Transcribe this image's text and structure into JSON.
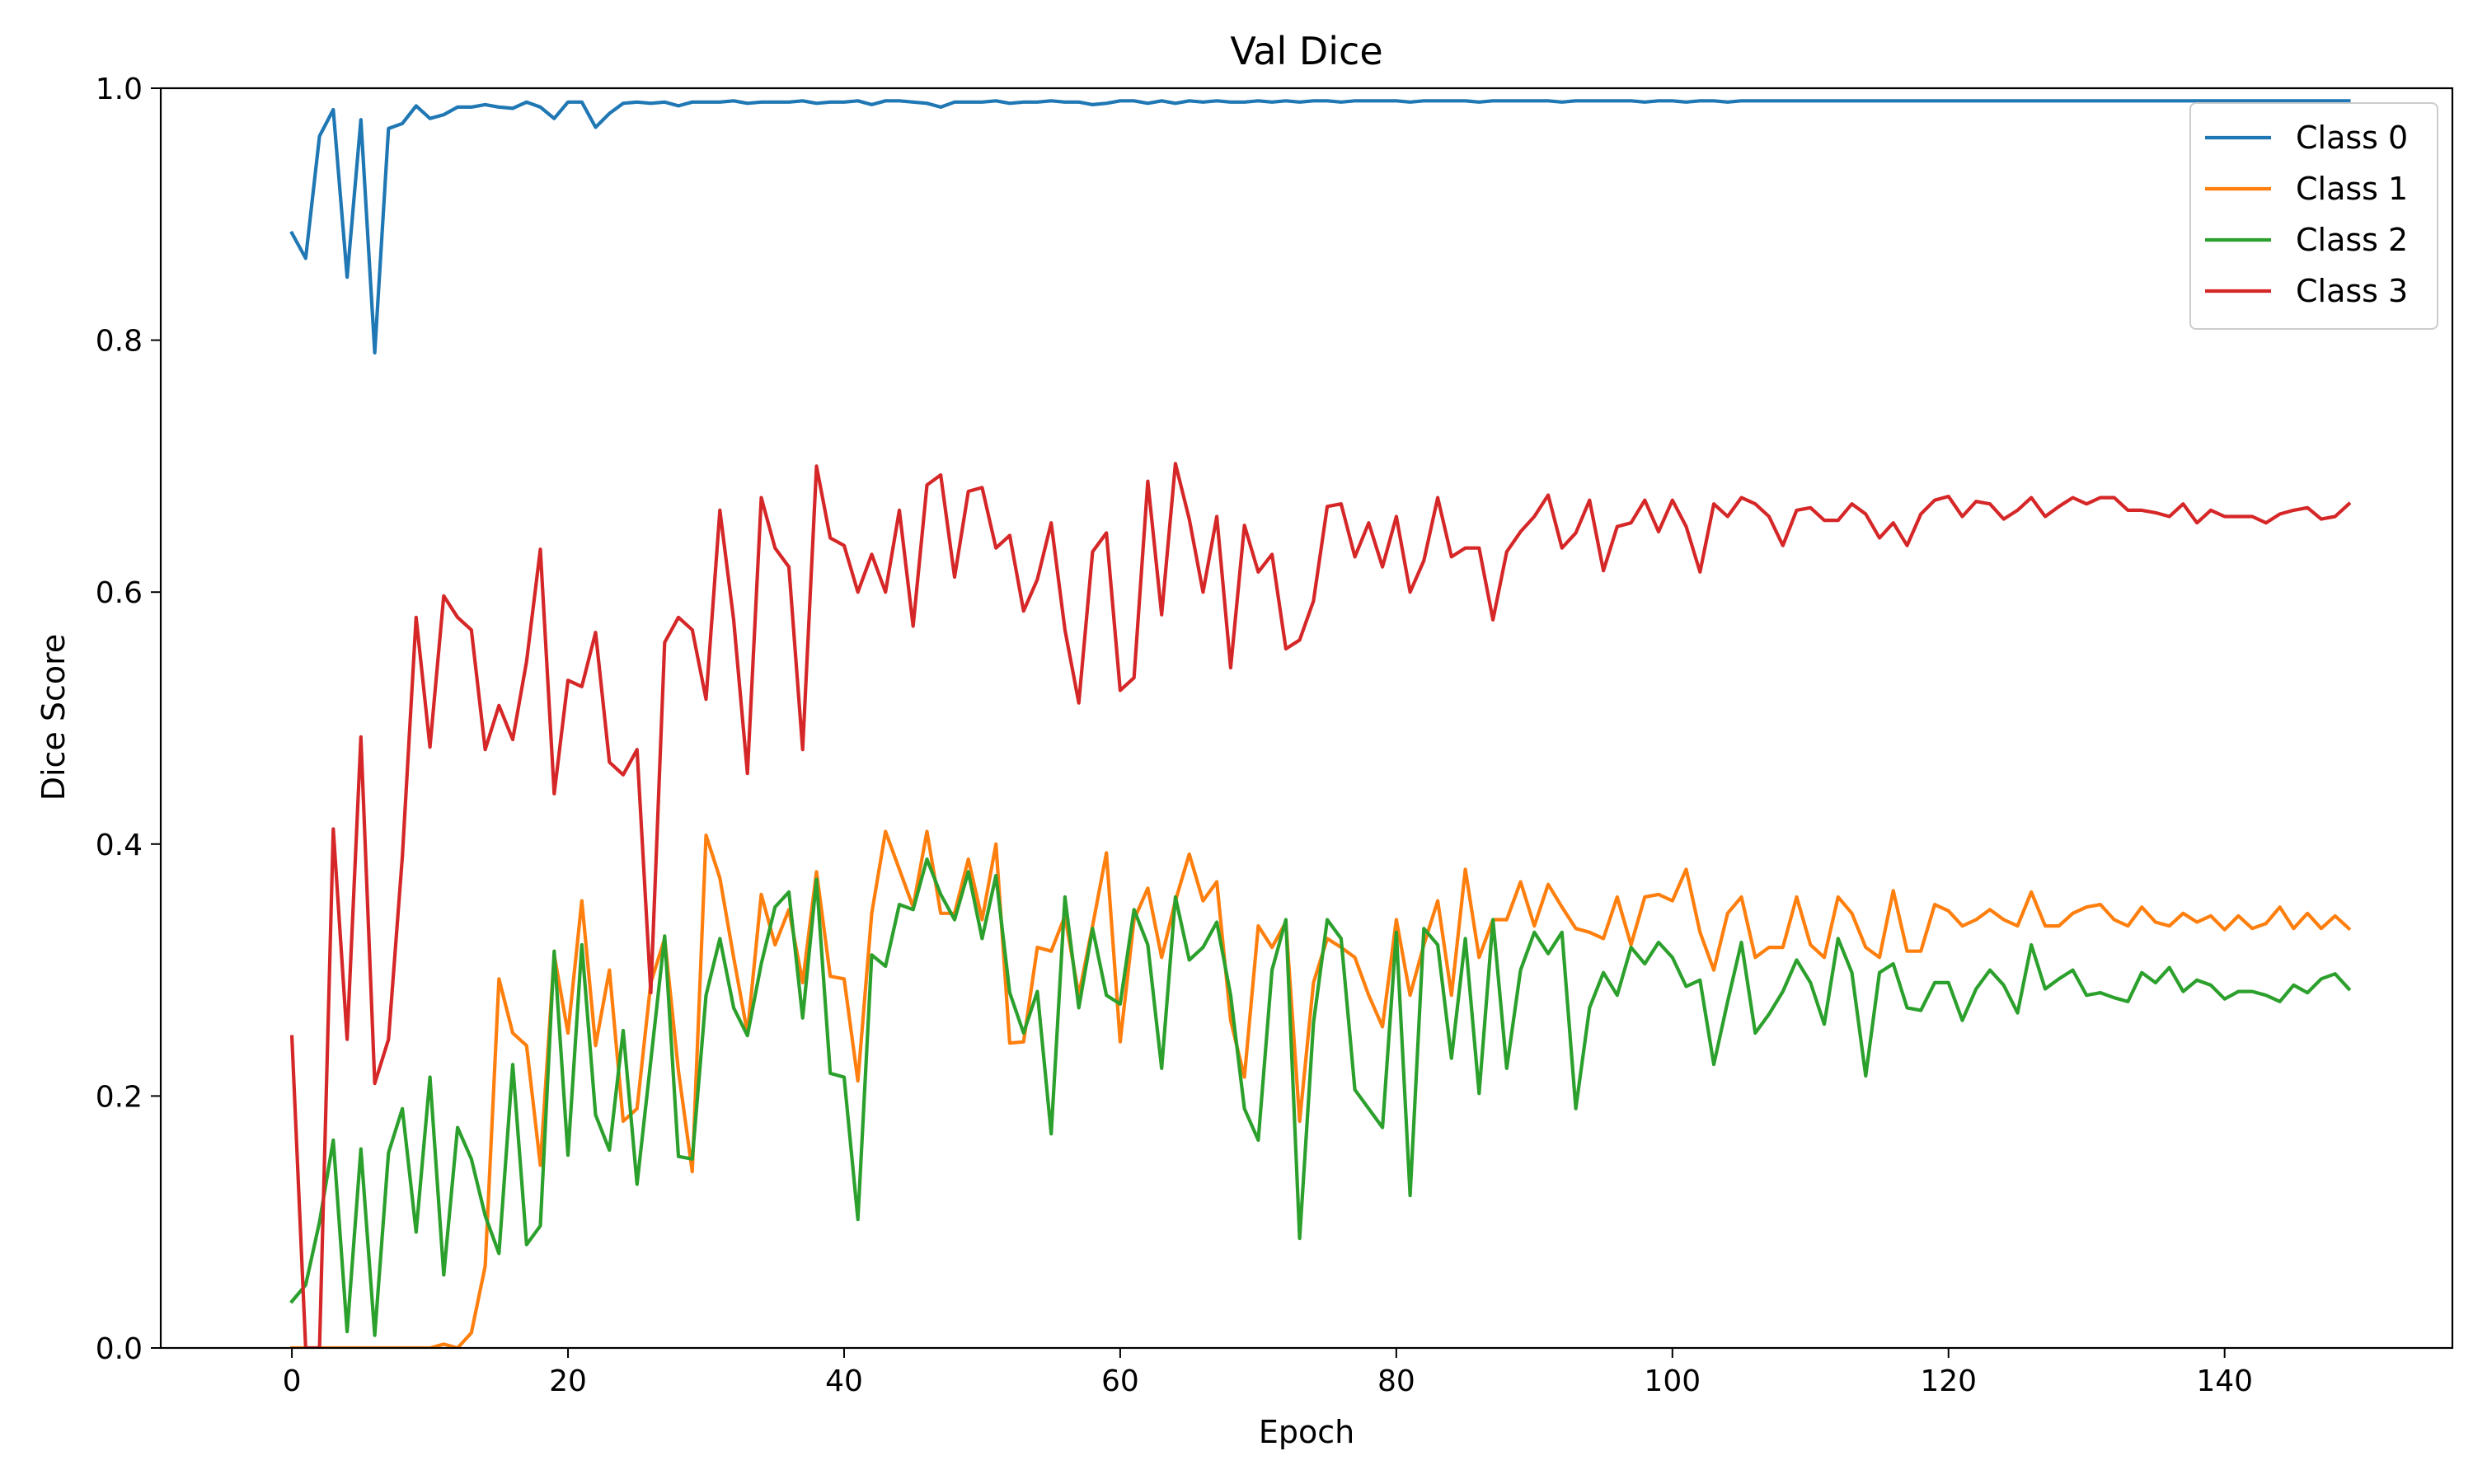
{
  "chart_data": {
    "type": "line",
    "title": "Val Dice",
    "xlabel": "Epoch",
    "ylabel": "Dice Score",
    "xlim": [
      -9.5,
      156.5
    ],
    "ylim": [
      0.0,
      1.0
    ],
    "xticks": [
      0,
      20,
      40,
      60,
      80,
      100,
      120,
      140
    ],
    "yticks": [
      0.0,
      0.2,
      0.4,
      0.6,
      0.8,
      1.0
    ],
    "xtick_labels": [
      "0",
      "20",
      "40",
      "60",
      "80",
      "100",
      "120",
      "140"
    ],
    "ytick_labels": [
      "0.0",
      "0.2",
      "0.4",
      "0.6",
      "0.8",
      "1.0"
    ],
    "grid": false,
    "legend_position": "top-right",
    "colors": [
      "#1f77b4",
      "#ff7f0e",
      "#2ca02c",
      "#d62728"
    ],
    "series": [
      {
        "name": "Class 0",
        "values": [
          0.885,
          0.865,
          0.962,
          0.983,
          0.85,
          0.975,
          0.79,
          0.968,
          0.972,
          0.986,
          0.976,
          0.979,
          0.985,
          0.985,
          0.987,
          0.985,
          0.984,
          0.989,
          0.985,
          0.976,
          0.989,
          0.989,
          0.969,
          0.98,
          0.988,
          0.989,
          0.988,
          0.989,
          0.986,
          0.989,
          0.989,
          0.989,
          0.99,
          0.988,
          0.989,
          0.989,
          0.989,
          0.99,
          0.988,
          0.989,
          0.989,
          0.99,
          0.987,
          0.99,
          0.99,
          0.989,
          0.988,
          0.985,
          0.989,
          0.989,
          0.989,
          0.99,
          0.988,
          0.989,
          0.989,
          0.99,
          0.989,
          0.989,
          0.987,
          0.988,
          0.99,
          0.99,
          0.988,
          0.99,
          0.988,
          0.99,
          0.989,
          0.99,
          0.989,
          0.989,
          0.99,
          0.989,
          0.99,
          0.989,
          0.99,
          0.99,
          0.989,
          0.99,
          0.99,
          0.99,
          0.99,
          0.989,
          0.99,
          0.99,
          0.99,
          0.99,
          0.989,
          0.99,
          0.99,
          0.99,
          0.99,
          0.99,
          0.989,
          0.99,
          0.99,
          0.99,
          0.99,
          0.99,
          0.989,
          0.99,
          0.99,
          0.989,
          0.99,
          0.99,
          0.989,
          0.99,
          0.99,
          0.99,
          0.99,
          0.99,
          0.99,
          0.99,
          0.99,
          0.99,
          0.99,
          0.99,
          0.99,
          0.99,
          0.99,
          0.99,
          0.99,
          0.99,
          0.99,
          0.99,
          0.99,
          0.99,
          0.99,
          0.99,
          0.99,
          0.99,
          0.99,
          0.99,
          0.99,
          0.99,
          0.99,
          0.99,
          0.99,
          0.99,
          0.99,
          0.99,
          0.99,
          0.99,
          0.99,
          0.99,
          0.99,
          0.99,
          0.99,
          0.99,
          0.99,
          0.99
        ]
      },
      {
        "name": "Class 1",
        "values": [
          0.0,
          0.0,
          0.0,
          0.0,
          0.0,
          0.0,
          0.0,
          0.0,
          0.0,
          0.0,
          0.0,
          0.003,
          0.0,
          0.012,
          0.065,
          0.293,
          0.25,
          0.24,
          0.145,
          0.312,
          0.25,
          0.355,
          0.24,
          0.3,
          0.18,
          0.19,
          0.29,
          0.325,
          0.22,
          0.14,
          0.407,
          0.373,
          0.31,
          0.25,
          0.36,
          0.32,
          0.348,
          0.29,
          0.378,
          0.295,
          0.293,
          0.212,
          0.345,
          0.41,
          0.38,
          0.35,
          0.41,
          0.345,
          0.345,
          0.388,
          0.34,
          0.4,
          0.242,
          0.243,
          0.318,
          0.315,
          0.343,
          0.28,
          0.335,
          0.393,
          0.243,
          0.34,
          0.365,
          0.31,
          0.355,
          0.392,
          0.355,
          0.37,
          0.26,
          0.215,
          0.335,
          0.318,
          0.338,
          0.18,
          0.29,
          0.325,
          0.318,
          0.31,
          0.28,
          0.255,
          0.34,
          0.28,
          0.32,
          0.355,
          0.28,
          0.38,
          0.31,
          0.34,
          0.34,
          0.37,
          0.335,
          0.368,
          0.35,
          0.333,
          0.33,
          0.325,
          0.358,
          0.32,
          0.358,
          0.36,
          0.355,
          0.38,
          0.33,
          0.3,
          0.345,
          0.358,
          0.31,
          0.318,
          0.318,
          0.358,
          0.32,
          0.31,
          0.358,
          0.345,
          0.318,
          0.31,
          0.363,
          0.315,
          0.315,
          0.352,
          0.347,
          0.335,
          0.34,
          0.348,
          0.34,
          0.335,
          0.362,
          0.335,
          0.335,
          0.345,
          0.35,
          0.352,
          0.34,
          0.335,
          0.35,
          0.338,
          0.335,
          0.345,
          0.338,
          0.343,
          0.332,
          0.343,
          0.333,
          0.337,
          0.35,
          0.333,
          0.345,
          0.333,
          0.343,
          0.333
        ]
      },
      {
        "name": "Class 2",
        "values": [
          0.037,
          0.05,
          0.1,
          0.165,
          0.013,
          0.158,
          0.01,
          0.155,
          0.19,
          0.092,
          0.215,
          0.058,
          0.175,
          0.15,
          0.105,
          0.075,
          0.225,
          0.082,
          0.097,
          0.315,
          0.153,
          0.32,
          0.185,
          0.157,
          0.252,
          0.13,
          0.228,
          0.327,
          0.152,
          0.15,
          0.28,
          0.325,
          0.27,
          0.248,
          0.305,
          0.35,
          0.362,
          0.262,
          0.372,
          0.218,
          0.215,
          0.102,
          0.312,
          0.303,
          0.352,
          0.348,
          0.388,
          0.36,
          0.34,
          0.378,
          0.325,
          0.375,
          0.282,
          0.25,
          0.283,
          0.17,
          0.358,
          0.27,
          0.333,
          0.28,
          0.273,
          0.348,
          0.32,
          0.222,
          0.358,
          0.308,
          0.318,
          0.338,
          0.28,
          0.19,
          0.165,
          0.3,
          0.34,
          0.087,
          0.258,
          0.34,
          0.325,
          0.205,
          0.19,
          0.175,
          0.33,
          0.121,
          0.333,
          0.32,
          0.23,
          0.325,
          0.202,
          0.34,
          0.222,
          0.3,
          0.33,
          0.313,
          0.33,
          0.19,
          0.27,
          0.298,
          0.28,
          0.318,
          0.305,
          0.322,
          0.31,
          0.287,
          0.292,
          0.225,
          0.275,
          0.322,
          0.25,
          0.265,
          0.283,
          0.308,
          0.29,
          0.257,
          0.325,
          0.298,
          0.216,
          0.298,
          0.305,
          0.27,
          0.268,
          0.29,
          0.29,
          0.26,
          0.285,
          0.3,
          0.288,
          0.266,
          0.32,
          0.285,
          0.293,
          0.3,
          0.28,
          0.282,
          0.278,
          0.275,
          0.298,
          0.29,
          0.302,
          0.283,
          0.292,
          0.288,
          0.277,
          0.283,
          0.283,
          0.28,
          0.275,
          0.288,
          0.282,
          0.293,
          0.297,
          0.285
        ]
      },
      {
        "name": "Class 3",
        "values": [
          0.247,
          0.0,
          0.0,
          0.412,
          0.245,
          0.485,
          0.21,
          0.245,
          0.39,
          0.58,
          0.477,
          0.597,
          0.58,
          0.57,
          0.475,
          0.51,
          0.483,
          0.545,
          0.634,
          0.44,
          0.53,
          0.525,
          0.568,
          0.465,
          0.455,
          0.475,
          0.282,
          0.56,
          0.58,
          0.57,
          0.515,
          0.665,
          0.578,
          0.456,
          0.675,
          0.635,
          0.62,
          0.475,
          0.7,
          0.643,
          0.637,
          0.6,
          0.63,
          0.6,
          0.665,
          0.573,
          0.685,
          0.693,
          0.612,
          0.68,
          0.683,
          0.635,
          0.645,
          0.585,
          0.61,
          0.655,
          0.57,
          0.512,
          0.632,
          0.647,
          0.522,
          0.532,
          0.688,
          0.582,
          0.702,
          0.658,
          0.6,
          0.66,
          0.54,
          0.653,
          0.616,
          0.63,
          0.555,
          0.562,
          0.593,
          0.668,
          0.67,
          0.628,
          0.655,
          0.62,
          0.66,
          0.6,
          0.625,
          0.675,
          0.628,
          0.635,
          0.635,
          0.578,
          0.632,
          0.648,
          0.66,
          0.677,
          0.635,
          0.647,
          0.673,
          0.617,
          0.652,
          0.655,
          0.673,
          0.648,
          0.673,
          0.652,
          0.616,
          0.67,
          0.66,
          0.675,
          0.67,
          0.66,
          0.637,
          0.665,
          0.667,
          0.657,
          0.657,
          0.67,
          0.662,
          0.643,
          0.655,
          0.637,
          0.662,
          0.673,
          0.676,
          0.66,
          0.672,
          0.67,
          0.658,
          0.665,
          0.675,
          0.66,
          0.668,
          0.675,
          0.67,
          0.675,
          0.675,
          0.665,
          0.665,
          0.663,
          0.66,
          0.67,
          0.655,
          0.665,
          0.66,
          0.66,
          0.66,
          0.655,
          0.662,
          0.665,
          0.667,
          0.658,
          0.66,
          0.67
        ]
      }
    ]
  }
}
